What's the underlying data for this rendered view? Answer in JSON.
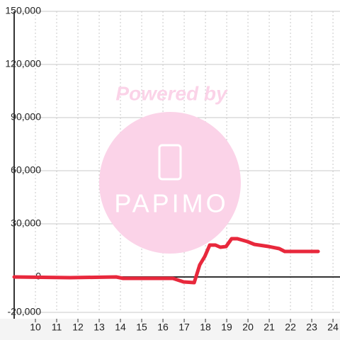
{
  "chart_data": {
    "type": "line",
    "x": [
      9.0,
      11.63,
      13.8,
      14.13,
      16.47,
      16.97,
      17.47,
      17.73,
      17.97,
      18.2,
      18.47,
      18.7,
      18.97,
      19.23,
      19.5,
      19.97,
      20.3,
      20.97,
      21.47,
      21.73,
      22.3,
      23.3
    ],
    "series": [
      {
        "color": "#e8283c",
        "values": [
          0,
          -400,
          0,
          -800,
          -800,
          -2800,
          -3200,
          6800,
          11600,
          18000,
          18000,
          16800,
          17200,
          21600,
          21600,
          20000,
          18400,
          17200,
          16000,
          14400,
          14400,
          14400
        ]
      }
    ],
    "xlim": [
      9,
      24.33
    ],
    "xticks": [
      10,
      11,
      12,
      13,
      14,
      15,
      16,
      17,
      18,
      19,
      20,
      21,
      22,
      23,
      24
    ],
    "ylim": [
      -20000,
      150000
    ],
    "yticks": [
      {
        "value": -20000,
        "label": "-20,000"
      },
      0,
      {
        "value": 30000,
        "label": "30,000"
      },
      {
        "value": 60000,
        "label": "60,000"
      },
      {
        "value": 90000,
        "label": "90,000"
      },
      {
        "value": 120000,
        "label": "120,000"
      },
      {
        "value": 150000,
        "label": "150,000"
      }
    ],
    "grid": true
  },
  "watermark": {
    "line1": "Powered by",
    "line2": "PAPIMO"
  }
}
